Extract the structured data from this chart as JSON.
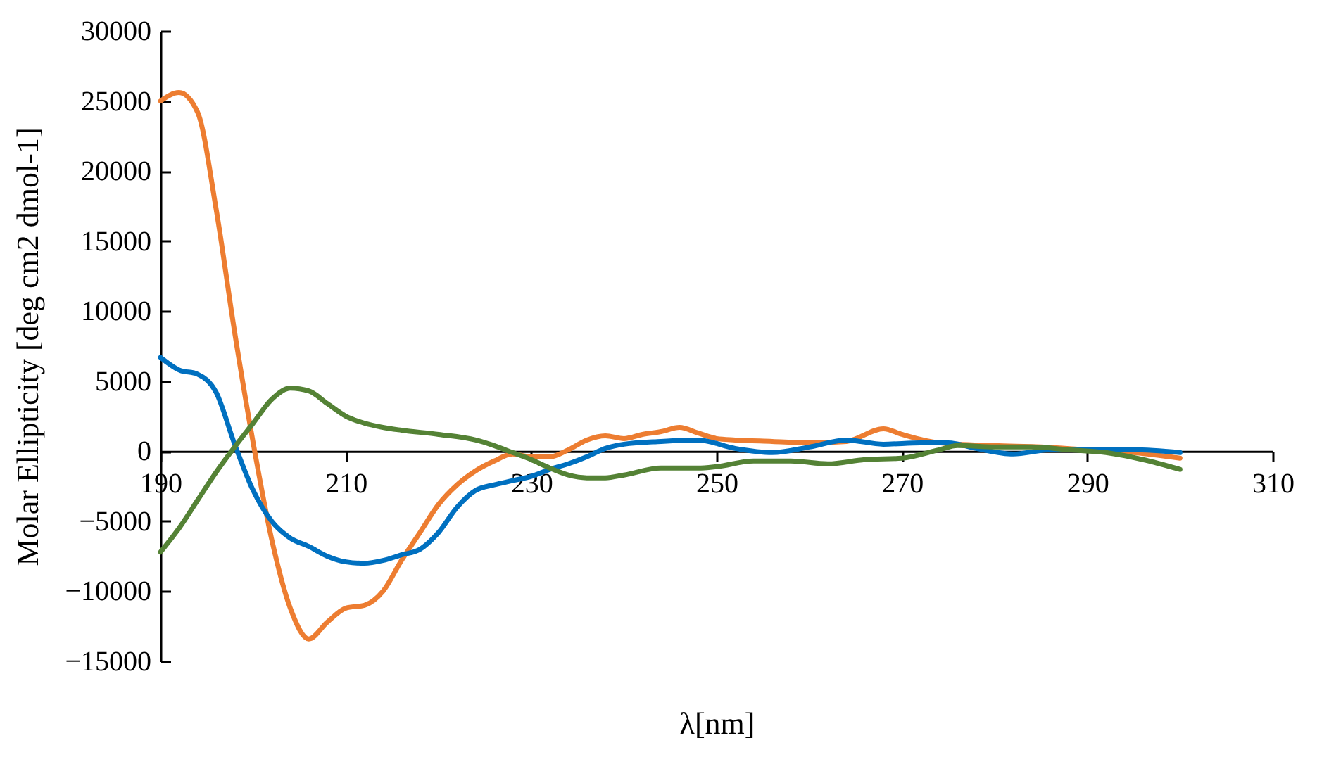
{
  "chart_data": {
    "type": "line",
    "xlabel": "λ[nm]",
    "ylabel": "Molar Ellipticity [deg cm2 dmol-1]",
    "xlim": [
      190,
      310
    ],
    "xticks": [
      190,
      210,
      230,
      250,
      270,
      290,
      310
    ],
    "ylim": [
      -15000,
      30000
    ],
    "yticks": [
      -15000,
      -10000,
      -5000,
      0,
      5000,
      10000,
      15000,
      20000,
      25000,
      30000
    ],
    "grid": false,
    "legend": false,
    "marker": "none",
    "line_style": "solid",
    "series": [
      {
        "color": "#ed7d31",
        "x": [
          190,
          192,
          194,
          196,
          198,
          200,
          202,
          204,
          206,
          208,
          210,
          212,
          214,
          216,
          218,
          220,
          222,
          224,
          226,
          228,
          230,
          232,
          234,
          236,
          238,
          240,
          242,
          244,
          246,
          248,
          250,
          252,
          256,
          260,
          264,
          268,
          270,
          274,
          280,
          285,
          290,
          295,
          300
        ],
        "values": [
          25000,
          25600,
          24200,
          17300,
          8500,
          600,
          -6300,
          -11200,
          -13400,
          -12200,
          -11200,
          -11000,
          -10000,
          -7800,
          -5800,
          -3800,
          -2400,
          -1400,
          -700,
          -200,
          -400,
          -400,
          100,
          800,
          1100,
          900,
          1200,
          1400,
          1700,
          1300,
          900,
          800,
          700,
          600,
          700,
          1600,
          1200,
          600,
          400,
          300,
          100,
          -100,
          -500
        ]
      },
      {
        "color": "#0070c0",
        "x": [
          190,
          192,
          194,
          196,
          198,
          200,
          202,
          204,
          206,
          208,
          210,
          212,
          214,
          216,
          218,
          220,
          222,
          224,
          226,
          228,
          230,
          232,
          234,
          236,
          238,
          240,
          244,
          248,
          252,
          256,
          260,
          264,
          268,
          272,
          275,
          278,
          282,
          286,
          290,
          295,
          300
        ],
        "values": [
          6700,
          5800,
          5500,
          4200,
          500,
          -2800,
          -5000,
          -6200,
          -6800,
          -7500,
          -7900,
          -8000,
          -7800,
          -7400,
          -7000,
          -5800,
          -4000,
          -2800,
          -2400,
          -2100,
          -1800,
          -1300,
          -900,
          -400,
          200,
          500,
          700,
          800,
          200,
          -100,
          300,
          800,
          500,
          600,
          600,
          200,
          -200,
          100,
          100,
          100,
          -100
        ]
      },
      {
        "color": "#548235",
        "x": [
          190,
          192,
          194,
          196,
          198,
          200,
          202,
          204,
          206,
          208,
          210,
          212,
          214,
          216,
          220,
          224,
          226,
          228,
          230,
          232,
          234,
          236,
          238,
          240,
          244,
          248,
          250,
          254,
          258,
          262,
          266,
          270,
          274,
          276,
          280,
          284,
          288,
          292,
          296,
          300
        ],
        "values": [
          -7200,
          -5500,
          -3500,
          -1500,
          300,
          2000,
          3700,
          4500,
          4300,
          3400,
          2500,
          2000,
          1700,
          1500,
          1200,
          800,
          400,
          -100,
          -600,
          -1200,
          -1700,
          -1900,
          -1900,
          -1700,
          -1200,
          -1200,
          -1100,
          -700,
          -700,
          -900,
          -600,
          -500,
          100,
          400,
          300,
          300,
          100,
          -100,
          -600,
          -1300
        ]
      }
    ]
  }
}
